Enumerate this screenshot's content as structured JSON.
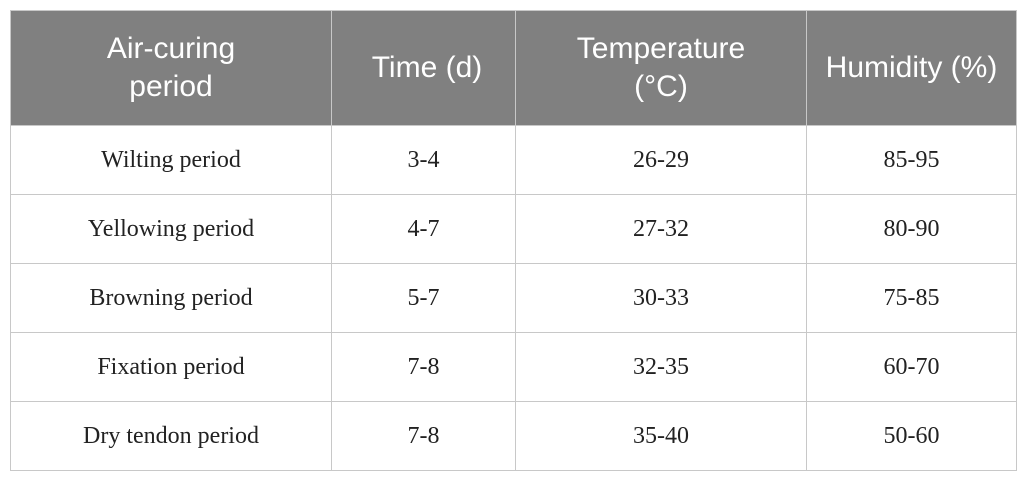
{
  "table": {
    "header": [
      "Air-curing period",
      "Time (d)",
      "Temperature (°C)",
      "Humidity (%)"
    ],
    "rows": [
      [
        "Wilting period",
        "3-4",
        "26-29",
        "85-95"
      ],
      [
        "Yellowing period",
        "4-7",
        "27-32",
        "80-90"
      ],
      [
        "Browning period",
        "5-7",
        "30-33",
        "75-85"
      ],
      [
        "Fixation period",
        "7-8",
        "32-35",
        "60-70"
      ],
      [
        "Dry tendon period",
        "7-8",
        "35-40",
        "50-60"
      ]
    ]
  }
}
